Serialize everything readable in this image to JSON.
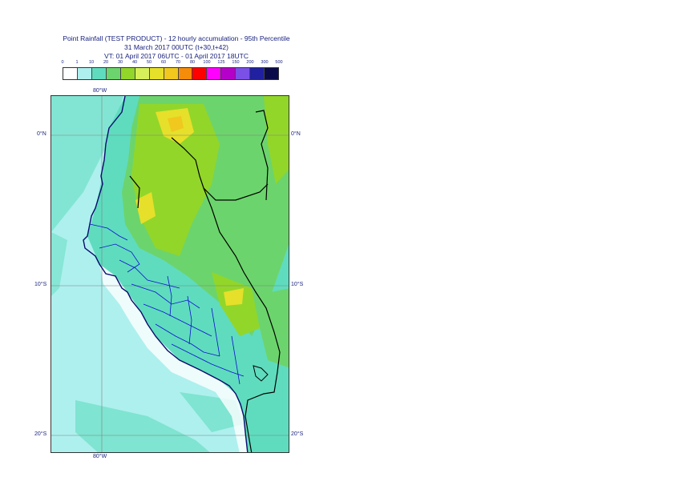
{
  "header": {
    "line1": "Point Rainfall (TEST PRODUCT) - 12 hourly accumulation - 95th Percentile",
    "line2": "31 March 2017 00UTC (t+30,t+42)",
    "line3": "VT: 01 April 2017 06UTC - 01 April 2017 18UTC"
  },
  "legend": {
    "ticks": [
      "0",
      "1",
      "10",
      "20",
      "30",
      "40",
      "50",
      "60",
      "70",
      "80",
      "100",
      "125",
      "150",
      "200",
      "300",
      "500"
    ],
    "colors": [
      "#ffffff",
      "#aef0ee",
      "#5fdcbe",
      "#6cd46c",
      "#92d62a",
      "#d6f05a",
      "#e6e02a",
      "#f0c81e",
      "#f58c0a",
      "#ff0000",
      "#ff00ff",
      "#b400c8",
      "#7a50e6",
      "#2020a0",
      "#0a0a4a"
    ]
  },
  "map": {
    "labels": {
      "lon_top": "80°W",
      "lon_bottom": "80°W",
      "lat0_left": "0°N",
      "lat0_right": "0°N",
      "lat10_left": "10°S",
      "lat10_right": "10°S",
      "lat20_left": "20°S",
      "lat20_right": "20°S"
    },
    "colors": {
      "sea": "#aef0ee",
      "light": "#5fdcbe",
      "medium": "#6cd46c",
      "strong": "#92d62a",
      "heavy": "#e6e02a",
      "peak": "#f0c81e",
      "coast": "#0a0a6e",
      "border": "#000000",
      "admin": "#1010d0"
    }
  }
}
